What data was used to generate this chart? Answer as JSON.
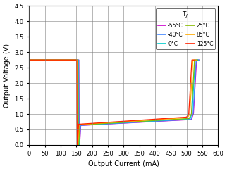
{
  "xlabel": "Output Current (mA)",
  "ylabel": "Output Voltage (V)",
  "xlim": [
    0,
    600
  ],
  "ylim": [
    0,
    4.5
  ],
  "xticks": [
    0,
    50,
    100,
    150,
    200,
    250,
    300,
    350,
    400,
    450,
    500,
    550,
    600
  ],
  "yticks": [
    0,
    0.5,
    1.0,
    1.5,
    2.0,
    2.5,
    3.0,
    3.5,
    4.0,
    4.5
  ],
  "legend_title": "TJ",
  "series": [
    {
      "label": "-55°C",
      "color": "#CC00CC",
      "temp": -55
    },
    {
      "label": "-40°C",
      "color": "#4488FF",
      "temp": -40
    },
    {
      "label": "0°C",
      "color": "#00CCCC",
      "temp": 0
    },
    {
      "label": "25°C",
      "color": "#88BB00",
      "temp": 25
    },
    {
      "label": "85°C",
      "color": "#FFAA00",
      "temp": 85
    },
    {
      "label": "125°C",
      "color": "#FF2200",
      "temp": 125
    }
  ]
}
